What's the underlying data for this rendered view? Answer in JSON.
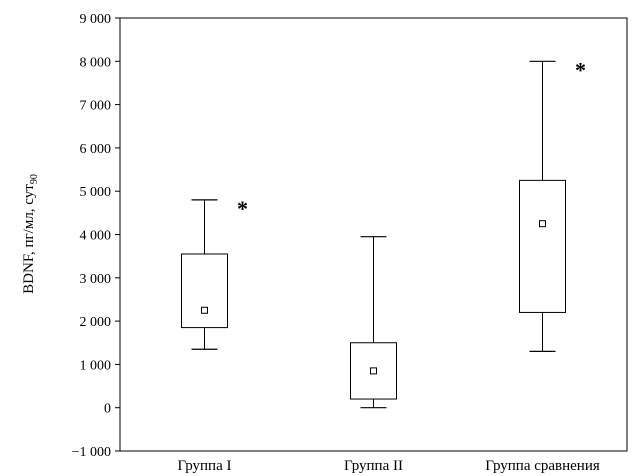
{
  "chart_data": {
    "type": "boxplot",
    "ylabel": "BDNF, пг/мл, сут",
    "ylabel_subscript": "90",
    "ylim": [
      -1000,
      9000
    ],
    "yticks": [
      -1000,
      0,
      1000,
      2000,
      3000,
      4000,
      5000,
      6000,
      7000,
      8000,
      9000
    ],
    "ytick_labels": [
      "−1 000",
      "0",
      "1 000",
      "2 000",
      "3 000",
      "4 000",
      "5 000",
      "6 000",
      "7 000",
      "8 000",
      "9 000"
    ],
    "grid": false,
    "categories": [
      "Группа I",
      "Группа II",
      "Группа сравнения"
    ],
    "boxes": [
      {
        "category": "Группа I",
        "whisker_low": 1350,
        "q1": 1850,
        "median": 2250,
        "q3": 3550,
        "whisker_high": 4800,
        "annotation": "*"
      },
      {
        "category": "Группа II",
        "whisker_low": 0,
        "q1": 200,
        "median": 850,
        "q3": 1500,
        "whisker_high": 3950,
        "annotation": ""
      },
      {
        "category": "Группа сравнения",
        "whisker_low": 1300,
        "q1": 2200,
        "median": 4250,
        "q3": 5250,
        "whisker_high": 8000,
        "annotation": "*"
      }
    ]
  }
}
